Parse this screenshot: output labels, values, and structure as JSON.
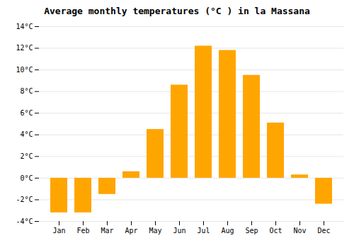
{
  "chart_data": {
    "type": "bar",
    "title": "Average monthly temperatures (°C ) in la Massana",
    "categories": [
      "Jan",
      "Feb",
      "Mar",
      "Apr",
      "May",
      "Jun",
      "Jul",
      "Aug",
      "Sep",
      "Oct",
      "Nov",
      "Dec"
    ],
    "values": [
      -3.2,
      -3.2,
      -1.5,
      0.6,
      4.5,
      8.6,
      12.2,
      11.8,
      9.5,
      5.1,
      0.3,
      -2.4
    ],
    "color": "#FFA500",
    "ylim": [
      -4,
      14
    ],
    "yticks": [
      {
        "value": -4,
        "label": "-4°C"
      },
      {
        "value": -2,
        "label": "-2°C"
      },
      {
        "value": 0,
        "label": "0°C"
      },
      {
        "value": 2,
        "label": "2°C"
      },
      {
        "value": 4,
        "label": "4°C"
      },
      {
        "value": 6,
        "label": "6°C"
      },
      {
        "value": 8,
        "label": "8°C"
      },
      {
        "value": 10,
        "label": "10°C"
      },
      {
        "value": 12,
        "label": "12°C"
      },
      {
        "value": 14,
        "label": "14°C"
      }
    ],
    "grid": true
  }
}
